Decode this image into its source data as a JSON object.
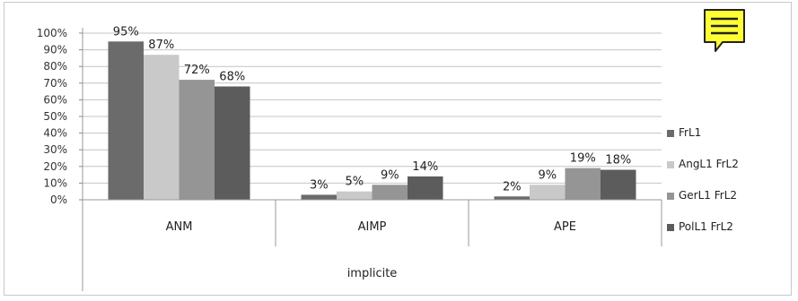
{
  "chart_data": {
    "type": "bar",
    "categories": [
      "ANM",
      "AIMP",
      "APE"
    ],
    "group_label": "implicite",
    "series": [
      {
        "name": "FrL1",
        "values": [
          95,
          3,
          2
        ],
        "labels": [
          "95%",
          "3%",
          "2%"
        ],
        "color": "#6b6b6b"
      },
      {
        "name": "AngL1 FrL2",
        "values": [
          87,
          5,
          9
        ],
        "labels": [
          "87%",
          "5%",
          "9%"
        ],
        "color": "#c9c9c9"
      },
      {
        "name": "GerL1 FrL2",
        "values": [
          72,
          9,
          19
        ],
        "labels": [
          "72%",
          "9%",
          "19%"
        ],
        "color": "#959595"
      },
      {
        "name": "PolL1 FrL2",
        "values": [
          68,
          14,
          18
        ],
        "labels": [
          "68%",
          "14%",
          "18%"
        ],
        "color": "#5c5c5c"
      }
    ],
    "yticks": [
      "0%",
      "10%",
      "20%",
      "30%",
      "40%",
      "50%",
      "60%",
      "70%",
      "80%",
      "90%",
      "100%"
    ],
    "ylim": [
      0,
      100
    ],
    "grid": true,
    "legend_position": "right"
  },
  "note_icon": {
    "icon": "sticky-note-icon",
    "color": "#ffff33"
  }
}
